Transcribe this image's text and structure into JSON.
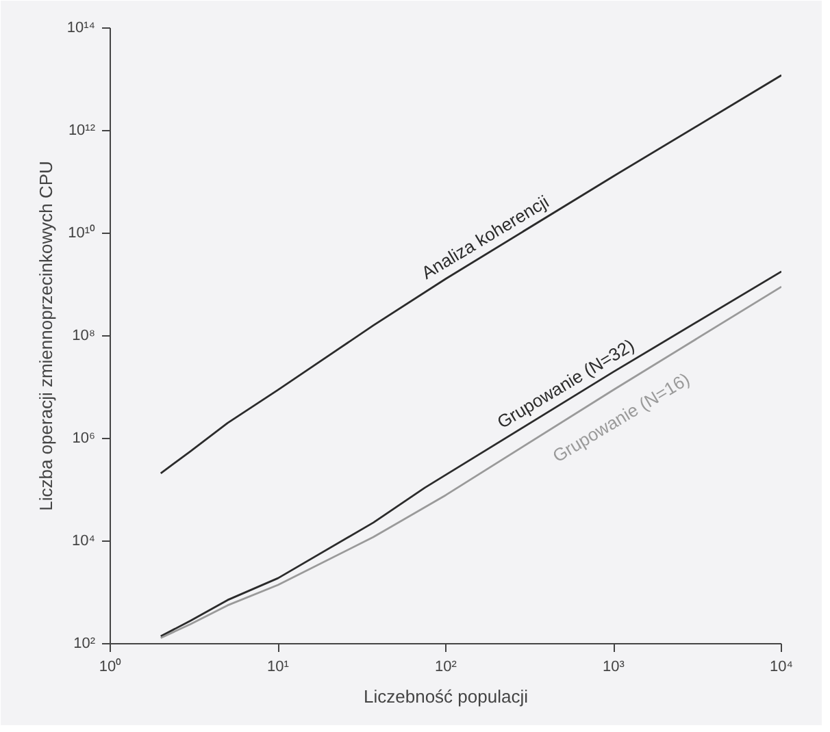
{
  "chart_data": {
    "type": "line",
    "xlabel": "Liczebność populacji",
    "ylabel": "Liczba operacji zmiennoprzecinkowych CPU",
    "log": "xy",
    "grid": false,
    "xlim": [
      1,
      10000
    ],
    "ylim": [
      100,
      100000000000000
    ],
    "xticks": [
      {
        "value": 1,
        "label": "10⁰"
      },
      {
        "value": 10,
        "label": "10¹"
      },
      {
        "value": 100,
        "label": "10²"
      },
      {
        "value": 1000,
        "label": "10³"
      },
      {
        "value": 10000,
        "label": "10⁴"
      }
    ],
    "yticks": [
      {
        "value": 100,
        "label": "10²"
      },
      {
        "value": 10000,
        "label": "10⁴"
      },
      {
        "value": 1000000,
        "label": "10⁶"
      },
      {
        "value": 100000000,
        "label": "10⁸"
      },
      {
        "value": 10000000000,
        "label": "10¹⁰"
      },
      {
        "value": 1000000000000,
        "label": "10¹²"
      },
      {
        "value": 100000000000000,
        "label": "10¹⁴"
      }
    ],
    "series": [
      {
        "name": "Analiza koherencji",
        "color": "#2b2b2b",
        "x": [
          2,
          3,
          5,
          10,
          37,
          100,
          1000,
          10000
        ],
        "values": [
          210000,
          560000,
          2000000,
          8900000,
          160000000,
          1300000000,
          130000000000,
          12000000000000
        ]
      },
      {
        "name": "Grupowanie (N=32)",
        "color": "#2b2b2b",
        "x": [
          2,
          3,
          5,
          10,
          37,
          75,
          1000,
          10000
        ],
        "values": [
          140,
          280,
          710,
          1900,
          23000,
          110000,
          20000000,
          1800000000
        ]
      },
      {
        "name": "Grupowanie (N=16)",
        "color": "#9a9a9a",
        "x": [
          2,
          3,
          5,
          10,
          37,
          100,
          1000,
          10000
        ],
        "values": [
          130,
          240,
          560,
          1400,
          12000,
          79000,
          8900000,
          910000000
        ]
      }
    ]
  }
}
